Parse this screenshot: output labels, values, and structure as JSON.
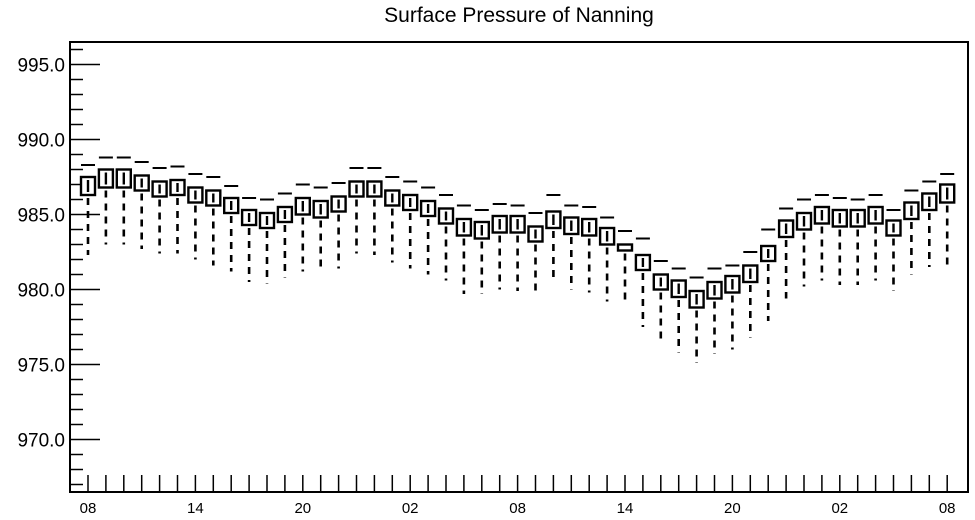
{
  "chart_data": {
    "type": "box",
    "title": "Surface Pressure of Nanning",
    "xlabel": "",
    "ylabel": "",
    "ylim": [
      966.5,
      996.5
    ],
    "y_ticks": [
      970.0,
      975.0,
      980.0,
      985.0,
      990.0,
      995.0
    ],
    "y_tick_labels": [
      "970.0",
      "975.0",
      "980.0",
      "985.0",
      "990.0",
      "995.0"
    ],
    "x_tick_labels": [
      "08",
      "14",
      "20",
      "02",
      "08",
      "14",
      "20",
      "02",
      "08"
    ],
    "x_tick_label_steps": [
      0,
      6,
      12,
      18,
      24,
      30,
      36,
      42,
      48
    ],
    "steps": 49,
    "grid": false,
    "series": [
      {
        "box_low": [
          986.3,
          986.8,
          986.8,
          986.6,
          986.2,
          986.3,
          985.8,
          985.6,
          985.1,
          984.3,
          984.1,
          984.5,
          985.0,
          984.8,
          985.2,
          986.2,
          986.2,
          985.6,
          985.3,
          984.9,
          984.4,
          983.6,
          983.4,
          983.8,
          983.8,
          983.2,
          984.1,
          983.7,
          983.6,
          983.0,
          982.6,
          981.3,
          980.0,
          979.5,
          978.8,
          979.4,
          979.8,
          980.5,
          981.9,
          983.5,
          984.0,
          984.4,
          984.2,
          984.2,
          984.4,
          983.6,
          984.7,
          985.3,
          985.8
        ],
        "box_high": [
          987.5,
          988.0,
          988.0,
          987.6,
          987.2,
          987.3,
          986.8,
          986.6,
          986.1,
          985.3,
          985.1,
          985.5,
          986.1,
          985.9,
          986.2,
          987.2,
          987.2,
          986.6,
          986.3,
          985.9,
          985.4,
          984.7,
          984.5,
          984.9,
          984.9,
          984.2,
          985.2,
          984.8,
          984.7,
          984.1,
          983.0,
          982.3,
          981.0,
          980.6,
          979.9,
          980.5,
          980.9,
          981.6,
          982.9,
          984.6,
          985.1,
          985.5,
          985.3,
          985.3,
          985.5,
          984.6,
          985.8,
          986.4,
          987.0
        ],
        "whisker_low": [
          982.3,
          983.0,
          983.0,
          982.7,
          982.4,
          982.4,
          982.0,
          981.6,
          981.2,
          980.5,
          980.4,
          980.8,
          981.2,
          981.2,
          981.4,
          982.4,
          982.3,
          981.8,
          981.4,
          981.0,
          980.6,
          979.7,
          979.7,
          980.0,
          979.9,
          979.6,
          980.5,
          980.0,
          979.8,
          979.2,
          979.2,
          977.5,
          976.4,
          975.8,
          975.1,
          975.7,
          976.0,
          976.8,
          977.9,
          979.4,
          980.2,
          980.6,
          980.3,
          980.3,
          980.6,
          979.9,
          981.0,
          981.5,
          981.6
        ],
        "whisker_high": [
          988.3,
          988.8,
          988.8,
          988.5,
          988.1,
          988.2,
          987.7,
          987.5,
          986.9,
          986.1,
          986.0,
          986.4,
          987.0,
          986.8,
          987.1,
          988.1,
          988.1,
          987.5,
          987.2,
          986.8,
          986.3,
          985.6,
          985.3,
          985.7,
          985.6,
          985.1,
          986.3,
          985.6,
          985.5,
          984.8,
          983.9,
          983.4,
          981.9,
          981.4,
          980.8,
          981.4,
          981.6,
          982.5,
          984.0,
          985.4,
          986.0,
          986.3,
          986.1,
          986.0,
          986.3,
          985.3,
          986.6,
          987.2,
          987.7
        ]
      }
    ],
    "colors": {
      "stroke": "#000000",
      "background": "#ffffff"
    }
  }
}
